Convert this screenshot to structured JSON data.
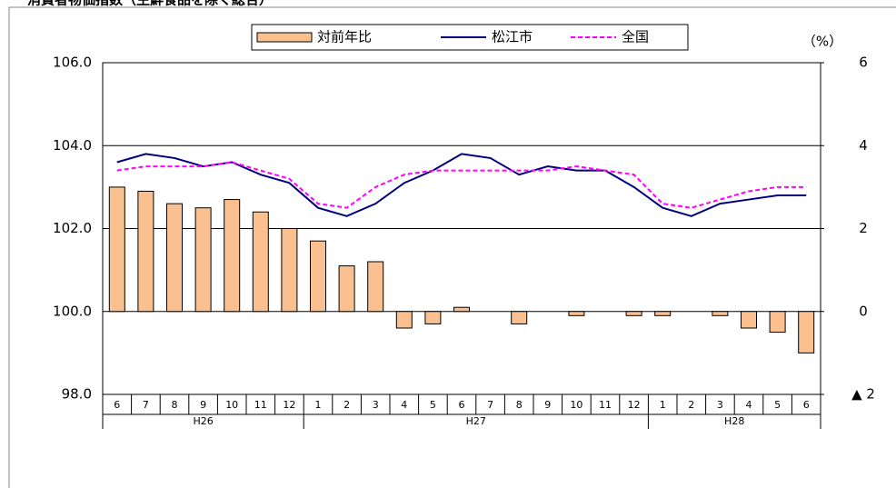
{
  "chart_data": {
    "type": "bar",
    "title": "消費者物価指数（生鮮食品を除く総合）",
    "y2_unit": "（%）",
    "categories": [
      "6",
      "7",
      "8",
      "9",
      "10",
      "11",
      "12",
      "1",
      "2",
      "3",
      "4",
      "5",
      "6",
      "7",
      "8",
      "9",
      "10",
      "11",
      "12",
      "1",
      "2",
      "3",
      "4",
      "5",
      "6"
    ],
    "groups": [
      {
        "name": "H26",
        "size": 7
      },
      {
        "name": "H27",
        "size": 12
      },
      {
        "name": "H28",
        "size": 6
      }
    ],
    "series": [
      {
        "name": "対前年比",
        "kind": "bar",
        "axis": "y2",
        "color": "#fac090",
        "values": [
          3.0,
          2.9,
          2.6,
          2.5,
          2.7,
          2.4,
          2.0,
          1.7,
          1.1,
          1.2,
          -0.4,
          -0.3,
          0.1,
          0.0,
          -0.3,
          0.0,
          -0.1,
          0.0,
          -0.1,
          -0.1,
          0.0,
          -0.1,
          -0.4,
          -0.5,
          -1.0
        ]
      },
      {
        "name": "松江市",
        "kind": "line",
        "axis": "y",
        "color": "#000080",
        "values": [
          103.6,
          103.8,
          103.7,
          103.5,
          103.6,
          103.3,
          103.1,
          102.5,
          102.3,
          102.6,
          103.1,
          103.4,
          103.8,
          103.7,
          103.3,
          103.5,
          103.4,
          103.4,
          103.0,
          102.5,
          102.3,
          102.6,
          102.7,
          102.8,
          102.8
        ]
      },
      {
        "name": "全国",
        "kind": "dashed",
        "axis": "y",
        "color": "#ff00ff",
        "values": [
          103.4,
          103.5,
          103.5,
          103.5,
          103.6,
          103.4,
          103.2,
          102.6,
          102.5,
          103.0,
          103.3,
          103.4,
          103.4,
          103.4,
          103.4,
          103.4,
          103.5,
          103.4,
          103.3,
          102.6,
          102.5,
          102.7,
          102.9,
          103.0,
          103.0
        ]
      }
    ],
    "ylim": [
      98,
      106
    ],
    "yticks": [
      {
        "value": 98,
        "label": "98.0"
      },
      {
        "value": 100,
        "label": "100.0"
      },
      {
        "value": 102,
        "label": "102.0"
      },
      {
        "value": 104,
        "label": "104.0"
      },
      {
        "value": 106,
        "label": "106.0"
      }
    ],
    "y2lim": [
      -2,
      6
    ],
    "y2ticks": [
      {
        "value": -2,
        "label": "▲ 2"
      },
      0,
      2,
      4,
      6
    ],
    "grid": true
  }
}
